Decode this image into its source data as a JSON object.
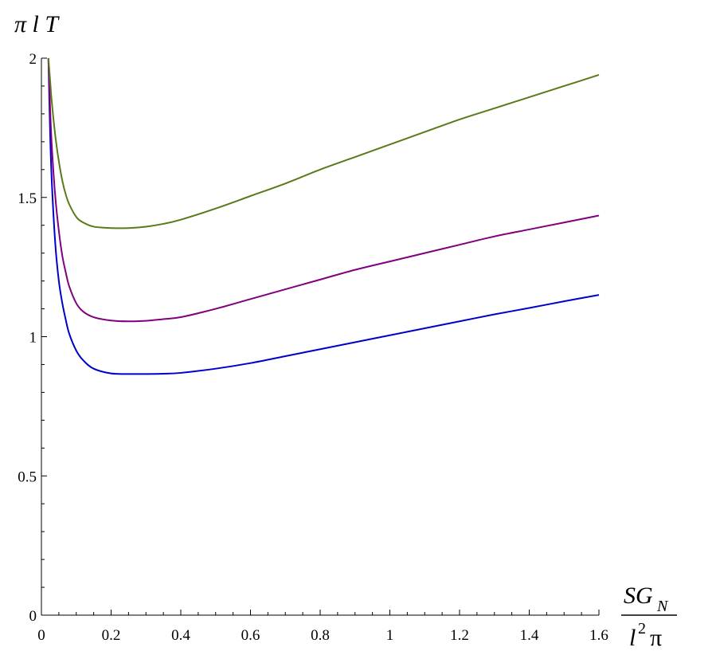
{
  "chart_data": {
    "type": "line",
    "title": "",
    "ylabel": "π l T",
    "xlabel": {
      "numerator_base": "SG",
      "numerator_sub": "N",
      "denominator_base": "l",
      "denominator_sup": "2",
      "denominator_tail": "π"
    },
    "xlim": [
      0,
      1.6
    ],
    "ylim": [
      0,
      2
    ],
    "x_ticks": [
      0,
      0.2,
      0.4,
      0.6,
      0.8,
      1,
      1.2,
      1.4,
      1.6
    ],
    "x_tick_labels": [
      "0",
      "0.2",
      "0.4",
      "0.6",
      "0.8",
      "1",
      "1.2",
      "1.4",
      "1.6"
    ],
    "y_ticks": [
      0,
      0.5,
      1,
      1.5,
      2
    ],
    "y_tick_labels": [
      "0",
      "0.5",
      "1",
      "1.5",
      "2"
    ],
    "grid": false,
    "legend": "none",
    "series": [
      {
        "color": "#0000cc",
        "x": [
          0.02,
          0.025,
          0.03,
          0.04,
          0.05,
          0.06,
          0.07,
          0.08,
          0.1,
          0.12,
          0.15,
          0.2,
          0.25,
          0.3,
          0.35,
          0.4,
          0.5,
          0.6,
          0.7,
          0.8,
          0.9,
          1.0,
          1.1,
          1.2,
          1.3,
          1.4,
          1.5,
          1.6
        ],
        "y": [
          2.0,
          1.73,
          1.55,
          1.33,
          1.2,
          1.12,
          1.06,
          1.01,
          0.95,
          0.915,
          0.885,
          0.868,
          0.866,
          0.866,
          0.867,
          0.87,
          0.885,
          0.905,
          0.93,
          0.955,
          0.98,
          1.005,
          1.03,
          1.055,
          1.08,
          1.103,
          1.127,
          1.15
        ]
      },
      {
        "color": "#800080",
        "x": [
          0.02,
          0.025,
          0.03,
          0.04,
          0.05,
          0.06,
          0.07,
          0.08,
          0.1,
          0.12,
          0.15,
          0.2,
          0.25,
          0.3,
          0.35,
          0.4,
          0.5,
          0.6,
          0.7,
          0.8,
          0.9,
          1.0,
          1.1,
          1.2,
          1.3,
          1.4,
          1.5,
          1.6
        ],
        "y": [
          2.0,
          1.82,
          1.68,
          1.5,
          1.38,
          1.29,
          1.23,
          1.18,
          1.12,
          1.09,
          1.07,
          1.058,
          1.055,
          1.057,
          1.063,
          1.07,
          1.1,
          1.135,
          1.17,
          1.205,
          1.24,
          1.27,
          1.3,
          1.33,
          1.36,
          1.385,
          1.41,
          1.435
        ]
      },
      {
        "color": "#5a7a1a",
        "x": [
          0.02,
          0.025,
          0.03,
          0.04,
          0.05,
          0.06,
          0.07,
          0.08,
          0.1,
          0.12,
          0.15,
          0.2,
          0.25,
          0.3,
          0.35,
          0.4,
          0.5,
          0.6,
          0.7,
          0.8,
          0.9,
          1.0,
          1.1,
          1.2,
          1.3,
          1.4,
          1.5,
          1.6
        ],
        "y": [
          2.0,
          1.92,
          1.84,
          1.72,
          1.63,
          1.56,
          1.51,
          1.475,
          1.43,
          1.41,
          1.395,
          1.39,
          1.39,
          1.395,
          1.405,
          1.42,
          1.46,
          1.505,
          1.55,
          1.6,
          1.645,
          1.69,
          1.735,
          1.78,
          1.82,
          1.86,
          1.9,
          1.94
        ]
      }
    ]
  }
}
